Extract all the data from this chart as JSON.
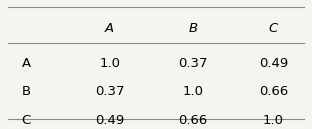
{
  "col_headers": [
    "",
    "A",
    "B",
    "C"
  ],
  "rows": [
    [
      "A",
      "1.0",
      "0.37",
      "0.49"
    ],
    [
      "B",
      "0.37",
      "1.0",
      "0.66"
    ],
    [
      "C",
      "0.49",
      "0.66",
      "1.0"
    ]
  ],
  "col_header_style": "italic",
  "row_label_style": "normal",
  "bg_color": "#f5f5f0",
  "line_color": "#888888",
  "text_color": "#000000",
  "font_size": 9.5
}
